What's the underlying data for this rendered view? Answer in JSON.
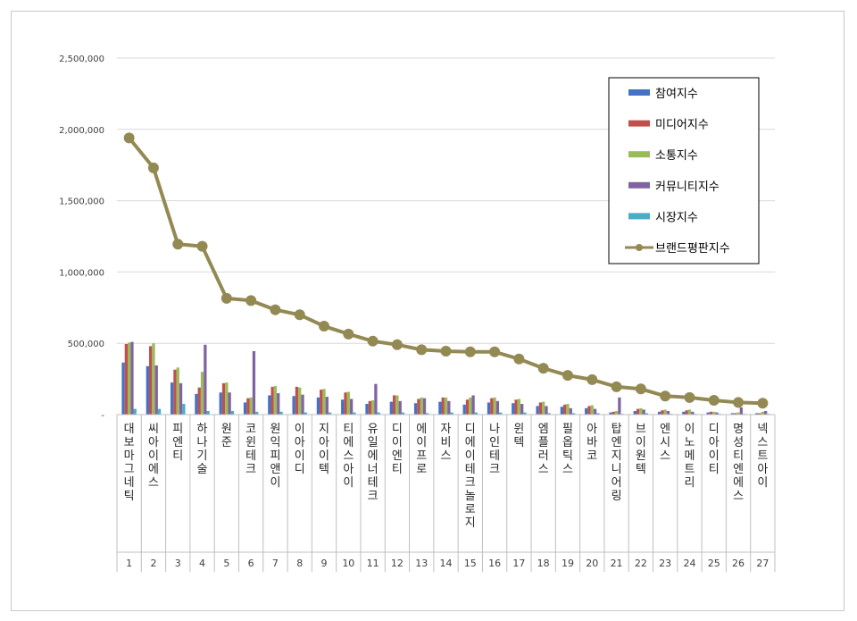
{
  "chart_data": {
    "type": "bar",
    "y_axis": {
      "min": 0,
      "max": 2500000,
      "step": 500000,
      "tick_labels": [
        "-",
        "500,000",
        "1,000,000",
        "1,500,000",
        "2,000,000",
        "2,500,000"
      ]
    },
    "grid": true,
    "legend_placement": "top-right",
    "ranks": [
      "1",
      "2",
      "3",
      "4",
      "5",
      "6",
      "7",
      "8",
      "9",
      "10",
      "11",
      "12",
      "13",
      "14",
      "15",
      "16",
      "17",
      "18",
      "19",
      "20",
      "21",
      "22",
      "23",
      "24",
      "25",
      "26",
      "27"
    ],
    "categories": [
      "대보마그네틱",
      "씨아이에스",
      "피엔티",
      "하나기술",
      "원준",
      "코윈테크",
      "원익피앤이",
      "이아이디",
      "지아이텍",
      "티에스아이",
      "유일에너테크",
      "디이엔티",
      "에이프로",
      "자비스",
      "디에이테크놀로지",
      "나인테크",
      "윈텍",
      "엠플러스",
      "필옵틱스",
      "아바코",
      "탑엔지니어링",
      "브이원텍",
      "엔시스",
      "이노메트리",
      "디아이티",
      "명성티엔에스",
      "넥스트아이"
    ],
    "series": [
      {
        "name": "참여지수",
        "type": "bar",
        "color": "#4472C4",
        "values": [
          365000,
          340000,
          225000,
          145000,
          155000,
          85000,
          135000,
          130000,
          120000,
          105000,
          75000,
          90000,
          80000,
          90000,
          70000,
          85000,
          80000,
          60000,
          55000,
          45000,
          15000,
          25000,
          20000,
          20000,
          15000,
          10000,
          10000
        ]
      },
      {
        "name": "미디어지수",
        "type": "bar",
        "color": "#C0504D",
        "values": [
          495000,
          480000,
          315000,
          190000,
          220000,
          115000,
          195000,
          195000,
          175000,
          155000,
          95000,
          135000,
          110000,
          120000,
          105000,
          115000,
          105000,
          85000,
          70000,
          60000,
          20000,
          40000,
          30000,
          30000,
          20000,
          10000,
          10000
        ]
      },
      {
        "name": "소통지수",
        "type": "bar",
        "color": "#9BBB59",
        "values": [
          505000,
          500000,
          330000,
          300000,
          225000,
          120000,
          200000,
          190000,
          180000,
          160000,
          100000,
          135000,
          120000,
          120000,
          120000,
          120000,
          110000,
          90000,
          75000,
          65000,
          25000,
          45000,
          35000,
          35000,
          20000,
          15000,
          20000
        ]
      },
      {
        "name": "커뮤니티지수",
        "type": "bar",
        "color": "#8064A2",
        "values": [
          510000,
          345000,
          220000,
          490000,
          155000,
          445000,
          150000,
          140000,
          125000,
          110000,
          215000,
          95000,
          115000,
          95000,
          135000,
          95000,
          75000,
          60000,
          45000,
          40000,
          120000,
          35000,
          25000,
          20000,
          15000,
          50000,
          25000
        ]
      },
      {
        "name": "시장지수",
        "type": "bar",
        "color": "#4BACC6",
        "values": [
          40000,
          40000,
          75000,
          25000,
          25000,
          20000,
          20000,
          15000,
          15000,
          15000,
          15000,
          15000,
          10000,
          15000,
          15000,
          15000,
          15000,
          10000,
          10000,
          10000,
          5000,
          10000,
          5000,
          5000,
          5000,
          5000,
          5000
        ]
      },
      {
        "name": "브랜드평판지수",
        "type": "line",
        "color": "#938953",
        "values": [
          1940000,
          1730000,
          1195000,
          1180000,
          815000,
          800000,
          735000,
          700000,
          620000,
          565000,
          515000,
          490000,
          455000,
          445000,
          440000,
          440000,
          390000,
          325000,
          275000,
          245000,
          195000,
          180000,
          130000,
          120000,
          100000,
          85000,
          80000
        ]
      }
    ]
  }
}
